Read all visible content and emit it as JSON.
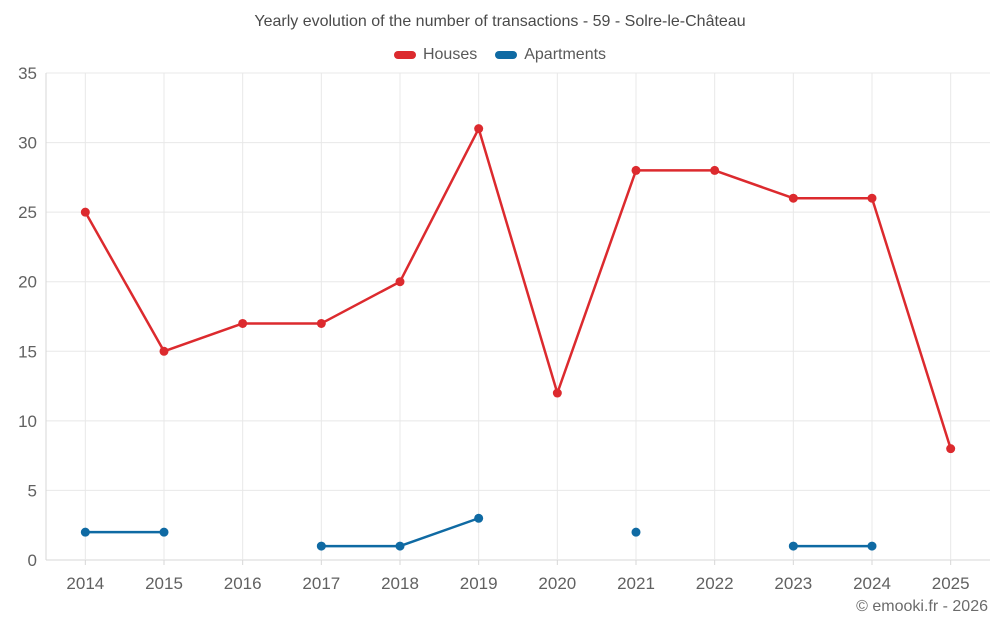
{
  "title": "Yearly evolution of the number of transactions - 59 - Solre-le-Château",
  "footer": "© emooki.fr - 2026",
  "colors": {
    "houses": "#dc2a2e",
    "apartments": "#0f6aa3",
    "grid": "#e8e8e8",
    "axis": "#d7d7d7",
    "tick_text": "#616161",
    "title_text": "#4a4a4a",
    "legend_text": "#595959",
    "footer_text": "#6b6b6b"
  },
  "chart_data": {
    "type": "line",
    "categories": [
      "2014",
      "2015",
      "2016",
      "2017",
      "2018",
      "2019",
      "2020",
      "2021",
      "2022",
      "2023",
      "2024",
      "2025"
    ],
    "series": [
      {
        "name": "Houses",
        "color_key": "houses",
        "values": [
          25,
          15,
          17,
          17,
          20,
          31,
          12,
          28,
          28,
          26,
          26,
          8
        ]
      },
      {
        "name": "Apartments",
        "color_key": "apartments",
        "values": [
          2,
          2,
          null,
          1,
          1,
          3,
          null,
          2,
          null,
          1,
          1,
          null
        ]
      }
    ],
    "ylim": [
      0,
      35
    ],
    "yticks": [
      0,
      5,
      10,
      15,
      20,
      25,
      30,
      35
    ],
    "grid": true,
    "legend_position": "top",
    "xlabel": "",
    "ylabel": ""
  }
}
